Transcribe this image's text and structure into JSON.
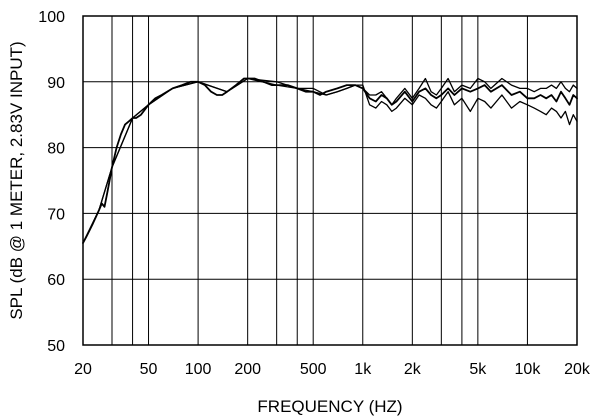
{
  "chart_data": {
    "type": "line",
    "title": "",
    "xlabel": "FREQUENCY (HZ)",
    "ylabel": "SPL (dB @ 1 METER, 2.83V INPUT)",
    "x_scale": "log",
    "xlim": [
      20,
      20000
    ],
    "ylim": [
      50,
      100
    ],
    "grid": true,
    "y_ticks": [
      "50",
      "60",
      "70",
      "80",
      "90",
      "100"
    ],
    "x_ticks": [
      {
        "value": 20,
        "label": "20"
      },
      {
        "value": 50,
        "label": "50"
      },
      {
        "value": 100,
        "label": "100"
      },
      {
        "value": 200,
        "label": "200"
      },
      {
        "value": 500,
        "label": "500"
      },
      {
        "value": 1000,
        "label": "1k"
      },
      {
        "value": 2000,
        "label": "2k"
      },
      {
        "value": 5000,
        "label": "5k"
      },
      {
        "value": 10000,
        "label": "10k"
      },
      {
        "value": 20000,
        "label": "20k"
      }
    ],
    "x_minor_grid": [
      30,
      40,
      300,
      400,
      3000,
      4000
    ],
    "series": [
      {
        "x": [
          20,
          21,
          22,
          23,
          24,
          25,
          26,
          27,
          28,
          29,
          30,
          32,
          34,
          36,
          38,
          40,
          42,
          45,
          50,
          55,
          60,
          70,
          80,
          90,
          100,
          110,
          120,
          130,
          140,
          150,
          170,
          190,
          200,
          220,
          250,
          280,
          300,
          350,
          400,
          450,
          500,
          550,
          600,
          700,
          800,
          900,
          1000,
          1100,
          1200,
          1300,
          1400,
          1500,
          1600,
          1800,
          2000,
          2200,
          2400,
          2600,
          2800,
          3000,
          3300,
          3600,
          4000,
          4500,
          5000,
          5500,
          6000,
          7000,
          8000,
          9000,
          10000,
          11000,
          12000,
          13000,
          14000,
          15000,
          16000,
          17000,
          18000,
          19000,
          20000
        ],
        "y": [
          65.5,
          66.5,
          67.5,
          68.5,
          69.5,
          70.5,
          71.5,
          71.0,
          73.0,
          75.0,
          77.0,
          80.0,
          82.0,
          83.5,
          84.0,
          84.5,
          84.5,
          85.0,
          86.5,
          87.5,
          88.0,
          89.0,
          89.5,
          90.0,
          90.0,
          89.5,
          88.5,
          88.0,
          88.0,
          88.5,
          89.5,
          90.5,
          90.5,
          90.5,
          90.0,
          89.5,
          89.5,
          89.5,
          89.0,
          88.5,
          88.5,
          88.0,
          88.5,
          89.0,
          89.5,
          89.5,
          89.0,
          87.5,
          87.0,
          88.0,
          87.5,
          86.5,
          87.0,
          88.5,
          87.0,
          88.5,
          89.0,
          88.0,
          87.5,
          88.0,
          89.0,
          88.0,
          89.0,
          88.5,
          89.0,
          89.5,
          88.5,
          89.5,
          88.0,
          88.5,
          87.5,
          87.5,
          88.0,
          87.5,
          88.0,
          87.0,
          88.5,
          87.5,
          86.5,
          88.0,
          87.5
        ]
      },
      {
        "x": [
          20,
          25,
          30,
          40,
          50,
          70,
          100,
          150,
          200,
          300,
          400,
          500,
          600,
          700,
          800,
          900,
          1000,
          1100,
          1200,
          1300,
          1400,
          1500,
          1600,
          1800,
          2000,
          2200,
          2400,
          2600,
          2800,
          3000,
          3300,
          3600,
          4000,
          4500,
          5000,
          5500,
          6000,
          7000,
          8000,
          9000,
          10000,
          11000,
          12000,
          13000,
          14000,
          15000,
          16000,
          17000,
          18000,
          19000,
          20000
        ],
        "y": [
          65.5,
          70.5,
          77.0,
          84.5,
          86.5,
          89.0,
          90.0,
          88.5,
          90.5,
          89.5,
          89.0,
          88.5,
          88.0,
          88.5,
          89.0,
          89.5,
          89.0,
          88.0,
          88.0,
          88.5,
          87.5,
          86.5,
          87.5,
          89.0,
          87.5,
          89.0,
          90.5,
          88.5,
          88.0,
          89.0,
          90.5,
          88.5,
          89.5,
          89.0,
          90.5,
          90.0,
          89.0,
          90.5,
          89.5,
          89.0,
          89.0,
          88.5,
          89.0,
          89.0,
          89.5,
          89.0,
          90.0,
          89.0,
          88.5,
          89.5,
          89.0
        ]
      },
      {
        "x": [
          20,
          25,
          30,
          40,
          50,
          70,
          100,
          150,
          200,
          300,
          400,
          500,
          600,
          700,
          800,
          900,
          1000,
          1100,
          1200,
          1300,
          1400,
          1500,
          1600,
          1800,
          2000,
          2200,
          2400,
          2600,
          2800,
          3000,
          3300,
          3600,
          4000,
          4500,
          5000,
          5500,
          6000,
          7000,
          8000,
          9000,
          10000,
          11000,
          12000,
          13000,
          14000,
          15000,
          16000,
          17000,
          18000,
          19000,
          20000
        ],
        "y": [
          65.5,
          70.5,
          77.0,
          84.5,
          86.5,
          89.0,
          90.0,
          88.5,
          90.5,
          90.0,
          89.0,
          89.0,
          88.0,
          88.5,
          89.0,
          89.5,
          89.5,
          86.5,
          86.0,
          87.0,
          86.5,
          85.5,
          86.0,
          87.5,
          86.5,
          88.0,
          87.5,
          86.5,
          86.0,
          87.0,
          88.5,
          86.5,
          87.5,
          85.5,
          87.5,
          87.0,
          86.0,
          88.0,
          86.0,
          87.0,
          86.5,
          86.0,
          85.5,
          85.0,
          86.0,
          85.5,
          84.5,
          85.5,
          83.5,
          85.0,
          84.0
        ]
      }
    ]
  }
}
